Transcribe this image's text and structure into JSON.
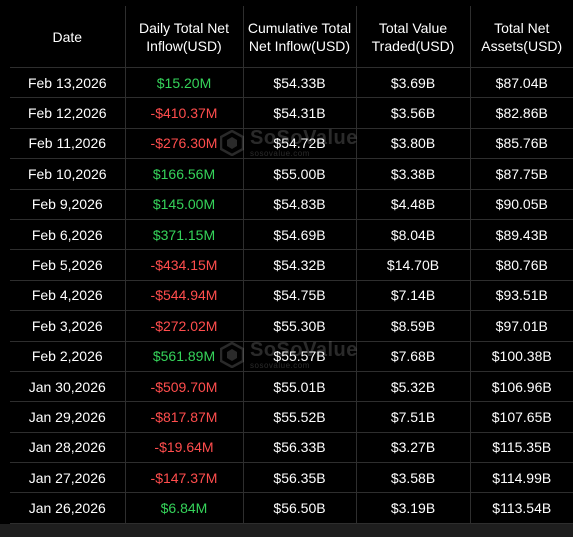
{
  "table": {
    "headers": [
      "Date",
      "Daily Total Net Inflow(USD)",
      "Cumulative Total Net Inflow(USD)",
      "Total Value Traded(USD)",
      "Total Net Assets(USD)"
    ],
    "rows": [
      {
        "date": "Feb 13,2026",
        "daily": "$15.20M",
        "sign": "pos",
        "cumulative": "$54.33B",
        "traded": "$3.69B",
        "assets": "$87.04B"
      },
      {
        "date": "Feb 12,2026",
        "daily": "-$410.37M",
        "sign": "neg",
        "cumulative": "$54.31B",
        "traded": "$3.56B",
        "assets": "$82.86B"
      },
      {
        "date": "Feb 11,2026",
        "daily": "-$276.30M",
        "sign": "neg",
        "cumulative": "$54.72B",
        "traded": "$3.80B",
        "assets": "$85.76B"
      },
      {
        "date": "Feb 10,2026",
        "daily": "$166.56M",
        "sign": "pos",
        "cumulative": "$55.00B",
        "traded": "$3.38B",
        "assets": "$87.75B"
      },
      {
        "date": "Feb 9,2026",
        "daily": "$145.00M",
        "sign": "pos",
        "cumulative": "$54.83B",
        "traded": "$4.48B",
        "assets": "$90.05B"
      },
      {
        "date": "Feb 6,2026",
        "daily": "$371.15M",
        "sign": "pos",
        "cumulative": "$54.69B",
        "traded": "$8.04B",
        "assets": "$89.43B"
      },
      {
        "date": "Feb 5,2026",
        "daily": "-$434.15M",
        "sign": "neg",
        "cumulative": "$54.32B",
        "traded": "$14.70B",
        "assets": "$80.76B"
      },
      {
        "date": "Feb 4,2026",
        "daily": "-$544.94M",
        "sign": "neg",
        "cumulative": "$54.75B",
        "traded": "$7.14B",
        "assets": "$93.51B"
      },
      {
        "date": "Feb 3,2026",
        "daily": "-$272.02M",
        "sign": "neg",
        "cumulative": "$55.30B",
        "traded": "$8.59B",
        "assets": "$97.01B"
      },
      {
        "date": "Feb 2,2026",
        "daily": "$561.89M",
        "sign": "pos",
        "cumulative": "$55.57B",
        "traded": "$7.68B",
        "assets": "$100.38B"
      },
      {
        "date": "Jan 30,2026",
        "daily": "-$509.70M",
        "sign": "neg",
        "cumulative": "$55.01B",
        "traded": "$5.32B",
        "assets": "$106.96B"
      },
      {
        "date": "Jan 29,2026",
        "daily": "-$817.87M",
        "sign": "neg",
        "cumulative": "$55.52B",
        "traded": "$7.51B",
        "assets": "$107.65B"
      },
      {
        "date": "Jan 28,2026",
        "daily": "-$19.64M",
        "sign": "neg",
        "cumulative": "$56.33B",
        "traded": "$3.27B",
        "assets": "$115.35B"
      },
      {
        "date": "Jan 27,2026",
        "daily": "-$147.37M",
        "sign": "neg",
        "cumulative": "$56.35B",
        "traded": "$3.58B",
        "assets": "$114.99B"
      },
      {
        "date": "Jan 26,2026",
        "daily": "$6.84M",
        "sign": "pos",
        "cumulative": "$56.50B",
        "traded": "$3.19B",
        "assets": "$113.54B"
      }
    ]
  },
  "watermark": {
    "brand": "SoSoValue",
    "site": "sosovalue.com",
    "icon": "sosovalue-logo-icon"
  },
  "colors": {
    "background": "#000000",
    "positive": "#35d35a",
    "negative": "#ff4d4d",
    "grid": "#2e2e2e"
  }
}
